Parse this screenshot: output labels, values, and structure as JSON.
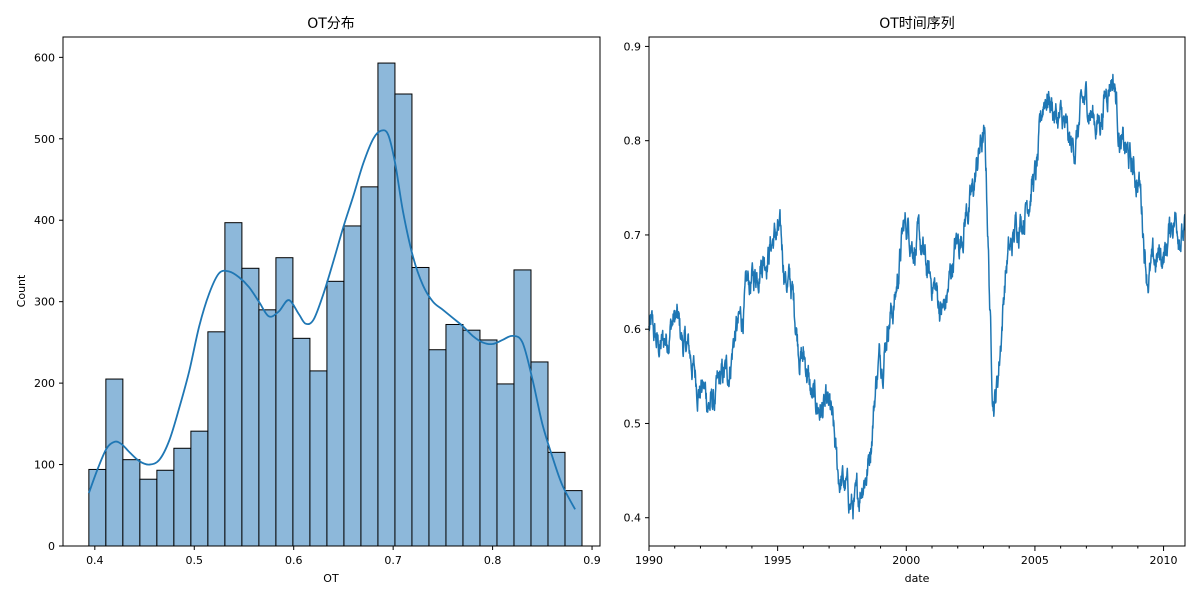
{
  "chart_data": [
    {
      "type": "bar",
      "title": "OT分布",
      "xlabel": "OT",
      "ylabel": "Count",
      "xlim": [
        0.368,
        0.908
      ],
      "ylim": [
        0,
        625
      ],
      "bin_start": 0.394,
      "bin_width": 0.0171,
      "values": [
        94,
        205,
        106,
        82,
        93,
        120,
        141,
        263,
        397,
        341,
        290,
        354,
        255,
        215,
        325,
        393,
        441,
        593,
        555,
        342,
        241,
        272,
        265,
        253,
        199,
        339,
        226,
        115,
        68
      ],
      "kde": {
        "x": [
          0.394,
          0.403,
          0.412,
          0.42,
          0.427,
          0.435,
          0.445,
          0.455,
          0.465,
          0.475,
          0.485,
          0.495,
          0.505,
          0.515,
          0.525,
          0.535,
          0.545,
          0.555,
          0.565,
          0.575,
          0.585,
          0.595,
          0.605,
          0.612,
          0.62,
          0.63,
          0.64,
          0.65,
          0.66,
          0.67,
          0.68,
          0.688,
          0.695,
          0.702,
          0.71,
          0.72,
          0.73,
          0.74,
          0.75,
          0.76,
          0.77,
          0.78,
          0.79,
          0.8,
          0.81,
          0.82,
          0.83,
          0.84,
          0.85,
          0.86,
          0.87,
          0.883
        ],
        "y": [
          65,
          95,
          120,
          128,
          125,
          115,
          104,
          100,
          106,
          130,
          170,
          215,
          270,
          310,
          335,
          337,
          330,
          318,
          300,
          282,
          288,
          302,
          285,
          273,
          278,
          310,
          350,
          392,
          430,
          470,
          500,
          510,
          505,
          470,
          410,
          355,
          320,
          300,
          290,
          280,
          270,
          258,
          250,
          248,
          253,
          258,
          250,
          205,
          150,
          110,
          75,
          45
        ]
      },
      "xticks": [
        0.4,
        0.5,
        0.6,
        0.7,
        0.8,
        0.9
      ],
      "xtick_labels": [
        "0.4",
        "0.5",
        "0.6",
        "0.7",
        "0.8",
        "0.9"
      ],
      "yticks": [
        0,
        100,
        200,
        300,
        400,
        500,
        600
      ],
      "ytick_labels": [
        "0",
        "100",
        "200",
        "300",
        "400",
        "500",
        "600"
      ],
      "bar_color": "#8db8da",
      "edge_color": "#000000",
      "kde_color": "#1f77b4",
      "grid": false
    },
    {
      "type": "line",
      "title": "OT时间序列",
      "xlabel": "date",
      "ylabel": "",
      "xlim": [
        "1990-01",
        "2010-11"
      ],
      "ylim": [
        0.37,
        0.91
      ],
      "x": [
        "1990-01",
        "1990-06",
        "1991-01",
        "1991-06",
        "1992-01",
        "1992-06",
        "1993-01",
        "1993-06",
        "1994-01",
        "1994-06",
        "1995-01",
        "1995-06",
        "1996-01",
        "1996-06",
        "1997-01",
        "1997-06",
        "1998-01",
        "1998-06",
        "1999-01",
        "1999-06",
        "2000-01",
        "2000-06",
        "2001-01",
        "2001-06",
        "2002-01",
        "2002-06",
        "2003-01",
        "2003-06",
        "2004-01",
        "2004-06",
        "2005-01",
        "2005-06",
        "2006-01",
        "2006-06",
        "2007-01",
        "2007-06",
        "2008-01",
        "2008-06",
        "2009-01",
        "2009-06",
        "2010-01",
        "2010-06",
        "2010-11"
      ],
      "y": [
        0.6,
        0.58,
        0.61,
        0.58,
        0.54,
        0.52,
        0.55,
        0.6,
        0.65,
        0.68,
        0.7,
        0.65,
        0.57,
        0.52,
        0.51,
        0.44,
        0.41,
        0.45,
        0.57,
        0.62,
        0.71,
        0.69,
        0.65,
        0.62,
        0.69,
        0.73,
        0.8,
        0.53,
        0.68,
        0.72,
        0.76,
        0.85,
        0.82,
        0.79,
        0.84,
        0.82,
        0.87,
        0.79,
        0.76,
        0.66,
        0.68,
        0.72,
        0.7
      ],
      "xticks": [
        "1990",
        "1995",
        "2000",
        "2005",
        "2010"
      ],
      "xtick_labels": [
        "1990",
        "1995",
        "2000",
        "2005",
        "2010"
      ],
      "yticks": [
        0.4,
        0.5,
        0.6,
        0.7,
        0.8,
        0.9
      ],
      "ytick_labels": [
        "0.4",
        "0.5",
        "0.6",
        "0.7",
        "0.8",
        "0.9"
      ],
      "line_color": "#1f77b4",
      "grid": false
    }
  ]
}
